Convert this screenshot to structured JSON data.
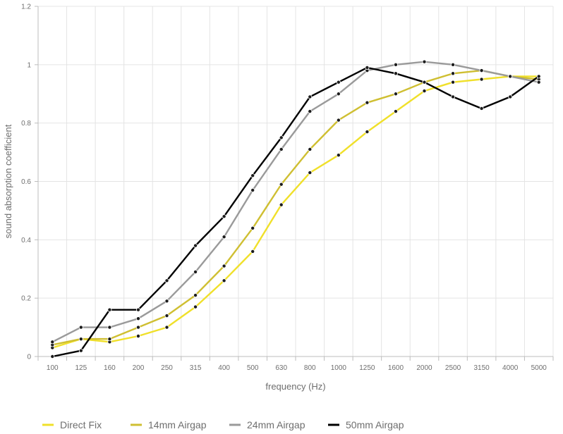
{
  "chart_data": {
    "type": "line",
    "xlabel": "frequency (Hz)",
    "ylabel": "sound absorption coefficient",
    "categories": [
      "100",
      "125",
      "160",
      "200",
      "250",
      "315",
      "400",
      "500",
      "630",
      "800",
      "1000",
      "1250",
      "1600",
      "2000",
      "2500",
      "3150",
      "4000",
      "5000"
    ],
    "y_ticks": [
      "0",
      "0.2",
      "0.4",
      "0.6",
      "0.8",
      "1",
      "1.2"
    ],
    "ylim": [
      0,
      1.2
    ],
    "grid": "vertical and horizontal",
    "legend_position": "bottom",
    "series": [
      {
        "name": "Direct Fix",
        "color": "#f0e02a",
        "values": [
          0.03,
          0.06,
          0.05,
          0.07,
          0.1,
          0.17,
          0.26,
          0.36,
          0.52,
          0.63,
          0.69,
          0.77,
          0.84,
          0.91,
          0.94,
          0.95,
          0.96,
          0.96
        ]
      },
      {
        "name": "14mm Airgap",
        "color": "#cfbf32",
        "values": [
          0.04,
          0.06,
          0.06,
          0.1,
          0.14,
          0.21,
          0.31,
          0.44,
          0.59,
          0.71,
          0.81,
          0.87,
          0.9,
          0.94,
          0.97,
          0.98,
          0.96,
          0.95
        ]
      },
      {
        "name": "24mm Airgap",
        "color": "#9a9a9a",
        "values": [
          0.05,
          0.1,
          0.1,
          0.13,
          0.19,
          0.29,
          0.41,
          0.57,
          0.71,
          0.84,
          0.9,
          0.98,
          1.0,
          1.01,
          1.0,
          0.98,
          0.96,
          0.94
        ]
      },
      {
        "name": "50mm Airgap",
        "color": "#000000",
        "values": [
          0.0,
          0.02,
          0.16,
          0.16,
          0.26,
          0.38,
          0.48,
          0.62,
          0.75,
          0.89,
          0.94,
          0.99,
          0.97,
          0.94,
          0.89,
          0.85,
          0.89,
          0.96
        ]
      }
    ]
  }
}
